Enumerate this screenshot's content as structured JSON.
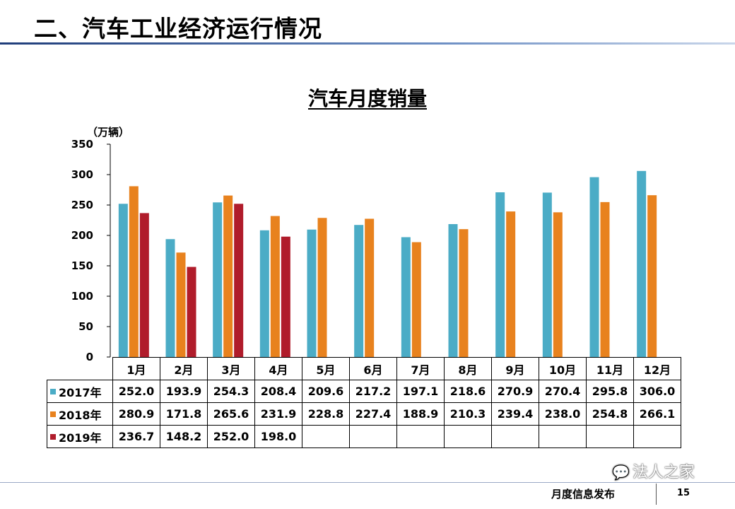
{
  "slide": {
    "title": "二、汽车工业经济运行情况",
    "footer": "月度信息发布",
    "page_number": "15",
    "watermark": "法人之家",
    "colors": {
      "title_rule": "#1f3d7a"
    }
  },
  "chart_data": {
    "type": "bar",
    "title": "汽车月度销量",
    "ylabel": "（万辆）",
    "ylim": [
      0,
      350
    ],
    "yticks": [
      0,
      50,
      100,
      150,
      200,
      250,
      300,
      350
    ],
    "categories": [
      "1月",
      "2月",
      "3月",
      "4月",
      "5月",
      "6月",
      "7月",
      "8月",
      "9月",
      "10月",
      "11月",
      "12月"
    ],
    "series": [
      {
        "name": "2017年",
        "color": "#4bacc6",
        "values": [
          252.0,
          193.9,
          254.3,
          208.4,
          209.6,
          217.2,
          197.1,
          218.6,
          270.9,
          270.4,
          295.8,
          306.0
        ]
      },
      {
        "name": "2018年",
        "color": "#e8821e",
        "values": [
          280.9,
          171.8,
          265.6,
          231.9,
          228.8,
          227.4,
          188.9,
          210.3,
          239.4,
          238.0,
          254.8,
          266.1
        ]
      },
      {
        "name": "2019年",
        "color": "#b01c2b",
        "values": [
          236.7,
          148.2,
          252.0,
          198.0,
          null,
          null,
          null,
          null,
          null,
          null,
          null,
          null
        ]
      }
    ],
    "grid": false,
    "legend": "table-below"
  }
}
